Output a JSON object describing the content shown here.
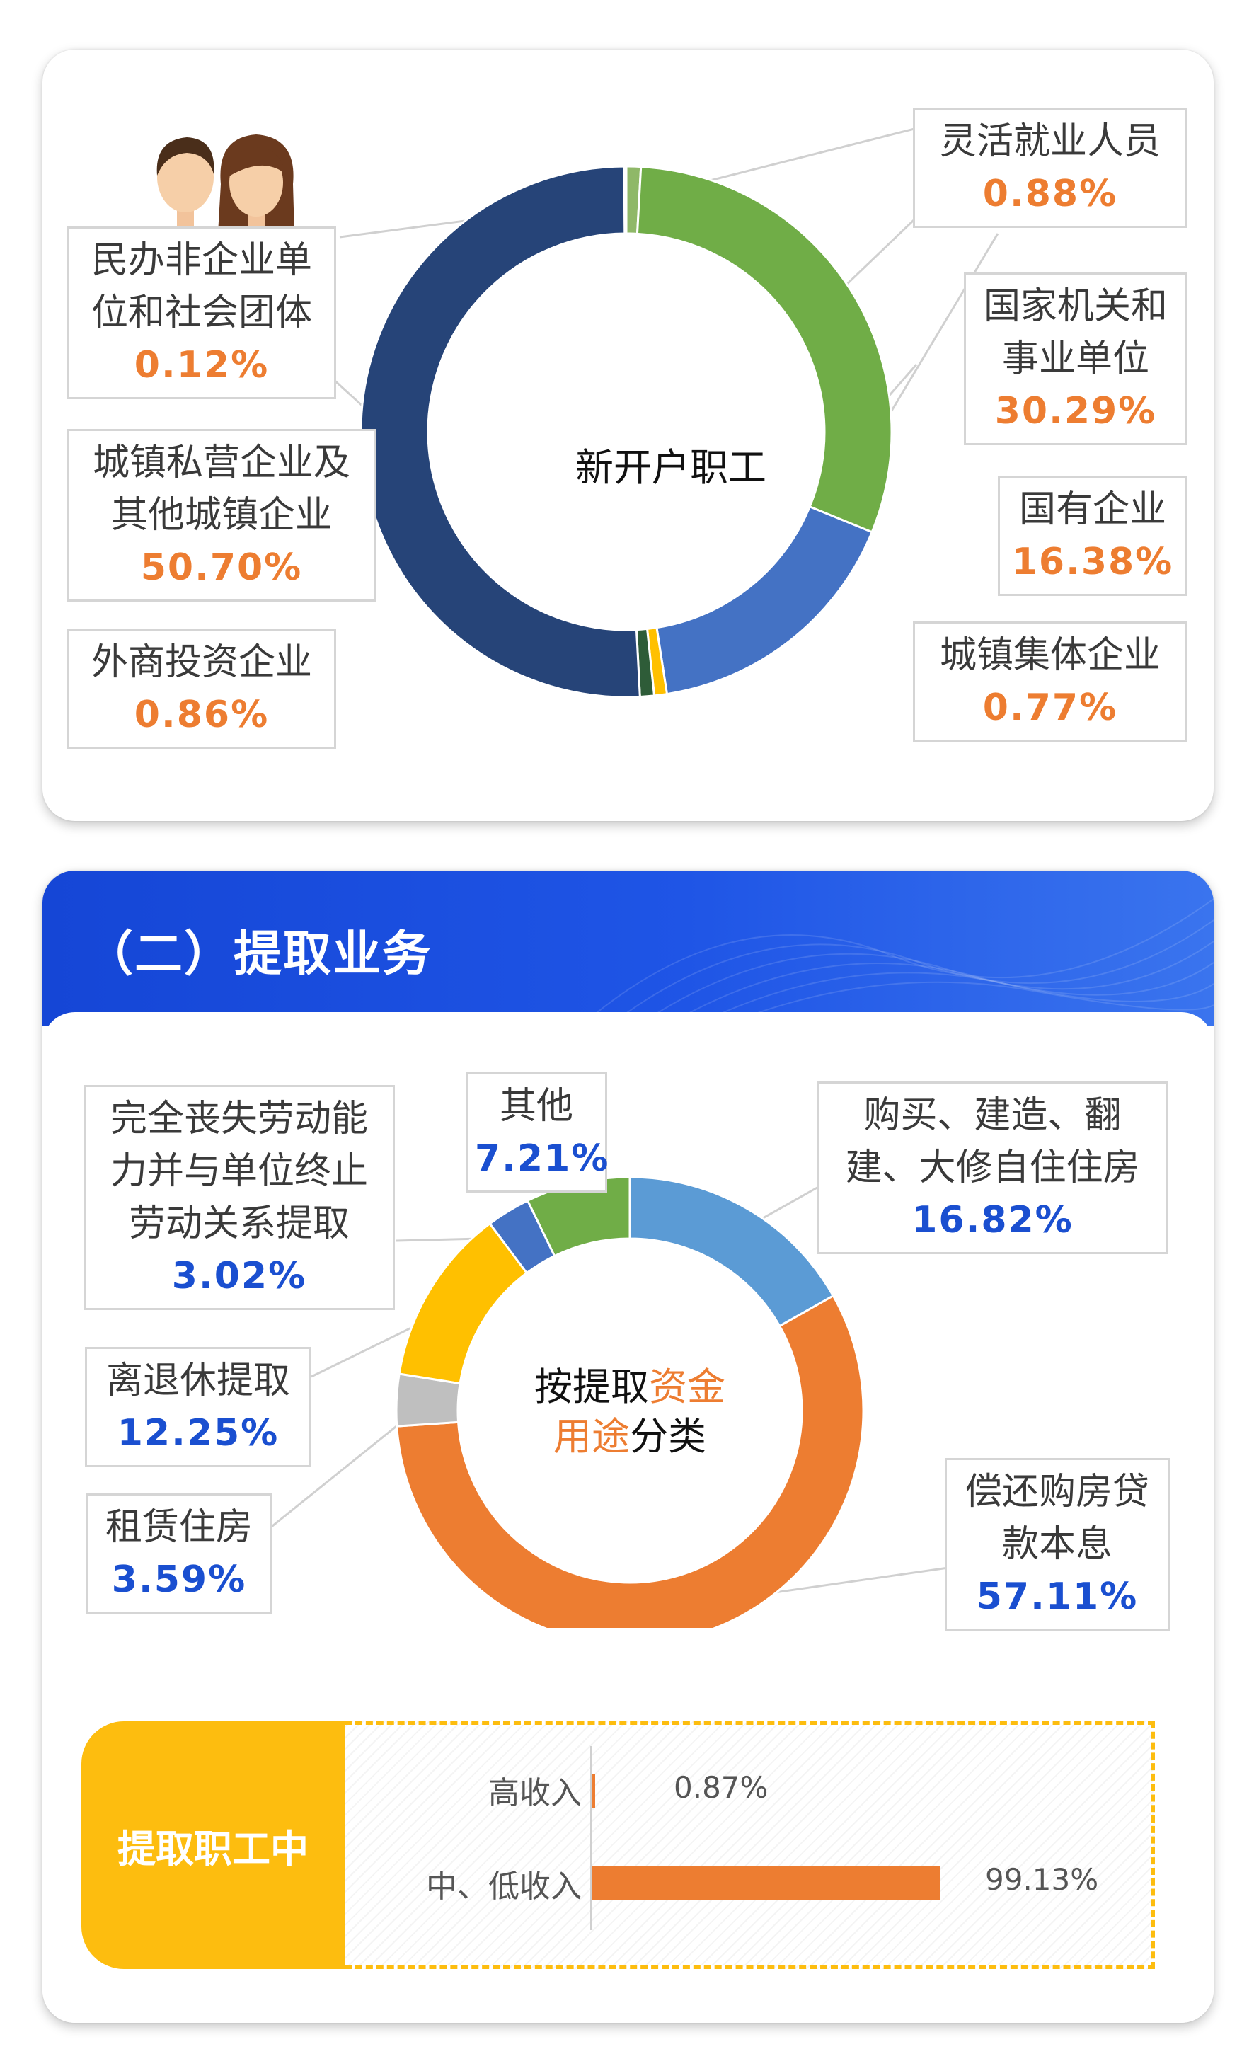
{
  "chart_data": [
    {
      "type": "pie",
      "title": "新开户职工",
      "slices": [
        {
          "label_lines": [
            "灵活就业人员"
          ],
          "display": "0.88%",
          "value": 0.88,
          "color": "#8fb868"
        },
        {
          "label_lines": [
            "国家机关和",
            "事业单位"
          ],
          "display": "30.29%",
          "value": 30.29,
          "color": "#70ad47"
        },
        {
          "label_lines": [
            "国有企业"
          ],
          "display": "16.38%",
          "value": 16.38,
          "color": "#4472c4"
        },
        {
          "label_lines": [
            "城镇集体企业"
          ],
          "display": "0.77%",
          "value": 0.77,
          "color": "#ffc000"
        },
        {
          "label_lines": [
            "外商投资企业"
          ],
          "display": "0.86%",
          "value": 0.86,
          "color": "#2e5c38"
        },
        {
          "label_lines": [
            "城镇私营企业及",
            "其他城镇企业"
          ],
          "display": "50.70%",
          "value": 50.7,
          "color": "#264478"
        },
        {
          "label_lines": [
            "民办非企业单",
            "位和社会团体"
          ],
          "display": "0.12%",
          "value": 0.12,
          "color": "#ed7d31"
        }
      ]
    },
    {
      "type": "pie",
      "title_parts": [
        "按提取",
        "资金",
        "用途",
        "分类"
      ],
      "slices": [
        {
          "label_lines": [
            "购买、建造、翻",
            "建、大修自住住房"
          ],
          "display": "16.82%",
          "value": 16.82,
          "color": "#5b9bd5"
        },
        {
          "label_lines": [
            "偿还购房贷",
            "款本息"
          ],
          "display": "57.11%",
          "value": 57.11,
          "color": "#ed7d31"
        },
        {
          "label_lines": [
            "租赁住房"
          ],
          "display": "3.59%",
          "value": 3.59,
          "color": "#bfbfbf"
        },
        {
          "label_lines": [
            "离退休提取"
          ],
          "display": "12.25%",
          "value": 12.25,
          "color": "#ffc000"
        },
        {
          "label_lines": [
            "完全丧失劳动能",
            "力并与单位终止",
            "劳动关系提取"
          ],
          "display": "3.02%",
          "value": 3.02,
          "color": "#4472c4"
        },
        {
          "label_lines": [
            "其他"
          ],
          "display": "7.21%",
          "value": 7.21,
          "color": "#70ad47"
        }
      ]
    },
    {
      "type": "bar",
      "categories": [
        "高收入",
        "中、低收入"
      ],
      "values": [
        0.87,
        99.13
      ],
      "labels": [
        "0.87%",
        "99.13%"
      ],
      "color": "#ed7d31"
    }
  ],
  "section2": {
    "heading": "（二）提取业务"
  },
  "panel": {
    "tag": "提取职工中"
  }
}
